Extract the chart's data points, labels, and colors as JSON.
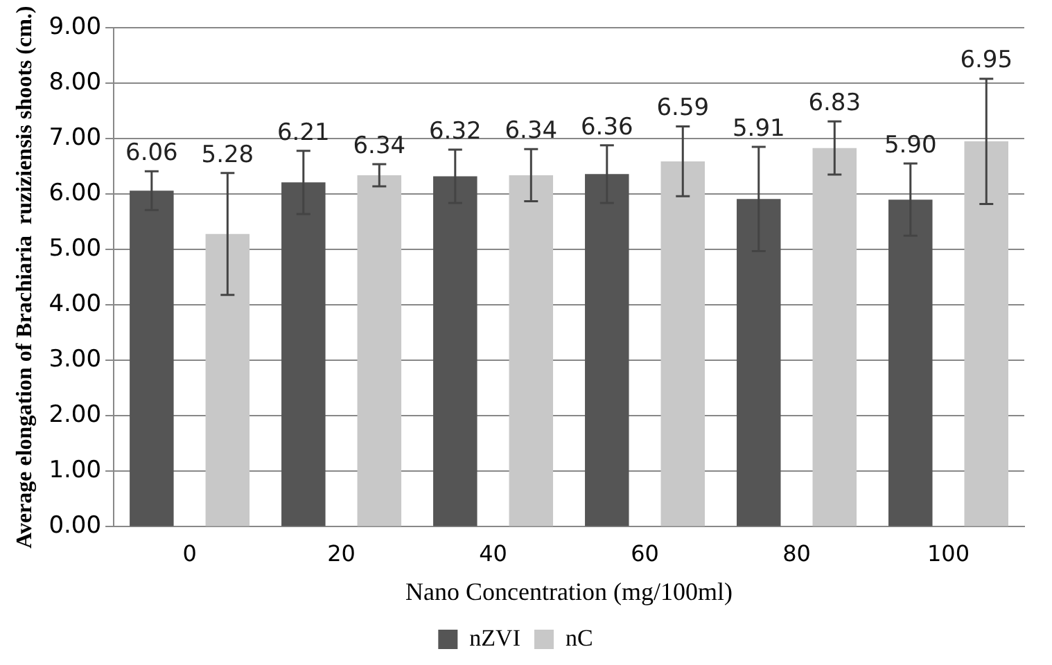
{
  "chart_data": {
    "type": "bar",
    "xlabel": "Nano Concentration (mg/100ml)",
    "ylabel": "Average elongation of Brachiaria  ruziziensis shoots (cm.)",
    "categories": [
      "0",
      "20",
      "40",
      "60",
      "80",
      "100"
    ],
    "series": [
      {
        "name": "nZVI",
        "color": "#555555",
        "values": [
          6.06,
          6.21,
          6.32,
          6.36,
          5.91,
          5.9
        ],
        "value_labels": [
          "6.06",
          "6.21",
          "6.32",
          "6.36",
          "5.91",
          "5.90"
        ],
        "errors": [
          0.35,
          0.57,
          0.48,
          0.52,
          0.94,
          0.65
        ]
      },
      {
        "name": "nC",
        "color": "#c8c8c8",
        "values": [
          5.28,
          6.34,
          6.34,
          6.59,
          6.83,
          6.95
        ],
        "value_labels": [
          "5.28",
          "6.34",
          "6.34",
          "6.59",
          "6.83",
          "6.95"
        ],
        "errors": [
          1.1,
          0.2,
          0.47,
          0.63,
          0.48,
          1.13
        ]
      }
    ],
    "ylim": [
      0,
      9
    ],
    "yticks": [
      {
        "value": 0,
        "label": "0.00"
      },
      {
        "value": 1,
        "label": "1.00"
      },
      {
        "value": 2,
        "label": "2.00"
      },
      {
        "value": 3,
        "label": "3.00"
      },
      {
        "value": 4,
        "label": "4.00"
      },
      {
        "value": 5,
        "label": "5.00"
      },
      {
        "value": 6,
        "label": "6.00"
      },
      {
        "value": 7,
        "label": "7.00"
      },
      {
        "value": 8,
        "label": "8.00"
      },
      {
        "value": 9,
        "label": "9.00"
      }
    ],
    "grid": "y",
    "legend": "bottom"
  }
}
